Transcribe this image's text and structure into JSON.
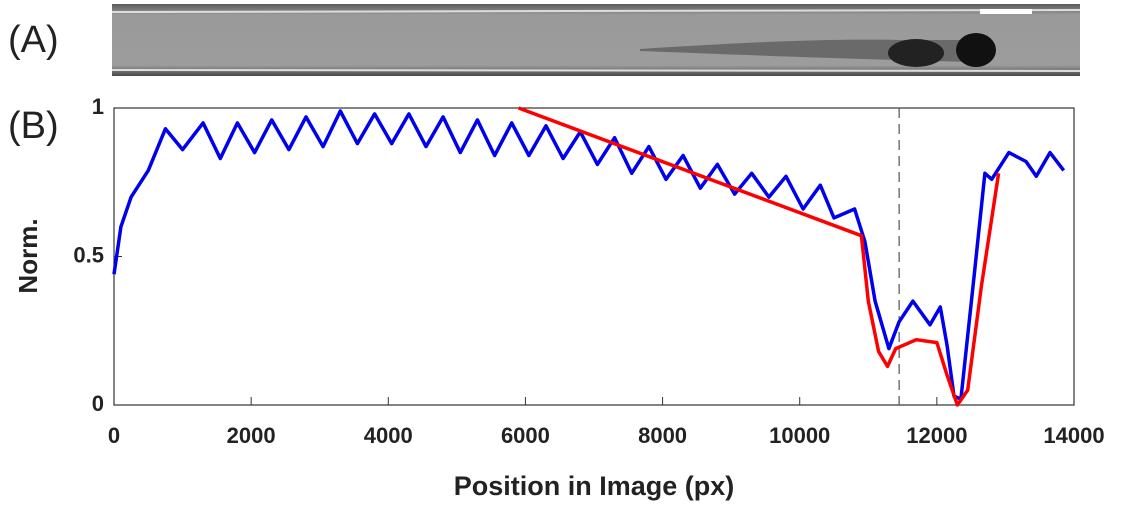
{
  "panel_labels": [
    "(A)",
    "(B)"
  ],
  "chart_data": {
    "type": "line",
    "xlabel": "Position in Image (px)",
    "ylabel": "Norm.",
    "xlim": [
      0,
      14000
    ],
    "ylim": [
      0,
      1
    ],
    "xticks": [
      0,
      2000,
      4000,
      6000,
      8000,
      10000,
      12000,
      14000
    ],
    "yticks": [
      0,
      0.5,
      1
    ],
    "vline": 11450,
    "series": [
      {
        "color": "#0000ee",
        "x": [
          0,
          100,
          250,
          500,
          750,
          1000,
          1300,
          1550,
          1800,
          2050,
          2300,
          2550,
          2800,
          3050,
          3300,
          3550,
          3800,
          4050,
          4300,
          4550,
          4800,
          5050,
          5300,
          5550,
          5800,
          6050,
          6300,
          6550,
          6800,
          7050,
          7300,
          7550,
          7800,
          8050,
          8300,
          8550,
          8800,
          9050,
          9300,
          9550,
          9800,
          10050,
          10300,
          10500,
          10800,
          10950,
          11100,
          11300,
          11450,
          11650,
          11900,
          12050,
          12150,
          12250,
          12350,
          12550,
          12700,
          12800,
          13050,
          13300,
          13450,
          13650,
          13850
        ],
        "values": [
          0.44,
          0.6,
          0.7,
          0.79,
          0.93,
          0.86,
          0.95,
          0.83,
          0.95,
          0.85,
          0.96,
          0.86,
          0.97,
          0.87,
          0.99,
          0.88,
          0.98,
          0.88,
          0.98,
          0.87,
          0.97,
          0.85,
          0.96,
          0.84,
          0.95,
          0.84,
          0.94,
          0.83,
          0.92,
          0.81,
          0.9,
          0.78,
          0.87,
          0.76,
          0.84,
          0.73,
          0.81,
          0.71,
          0.78,
          0.7,
          0.77,
          0.66,
          0.74,
          0.63,
          0.66,
          0.55,
          0.35,
          0.19,
          0.28,
          0.35,
          0.27,
          0.33,
          0.2,
          0.03,
          0.02,
          0.45,
          0.78,
          0.76,
          0.85,
          0.82,
          0.77,
          0.85,
          0.79
        ]
      },
      {
        "color": "#ff0000",
        "x": [
          5900,
          10900,
          11000,
          11150,
          11280,
          11400,
          11700,
          12000,
          12150,
          12300,
          12450,
          12650,
          12900
        ],
        "values": [
          1.0,
          0.57,
          0.35,
          0.18,
          0.13,
          0.19,
          0.22,
          0.21,
          0.1,
          0.0,
          0.05,
          0.4,
          0.78
        ]
      }
    ]
  }
}
